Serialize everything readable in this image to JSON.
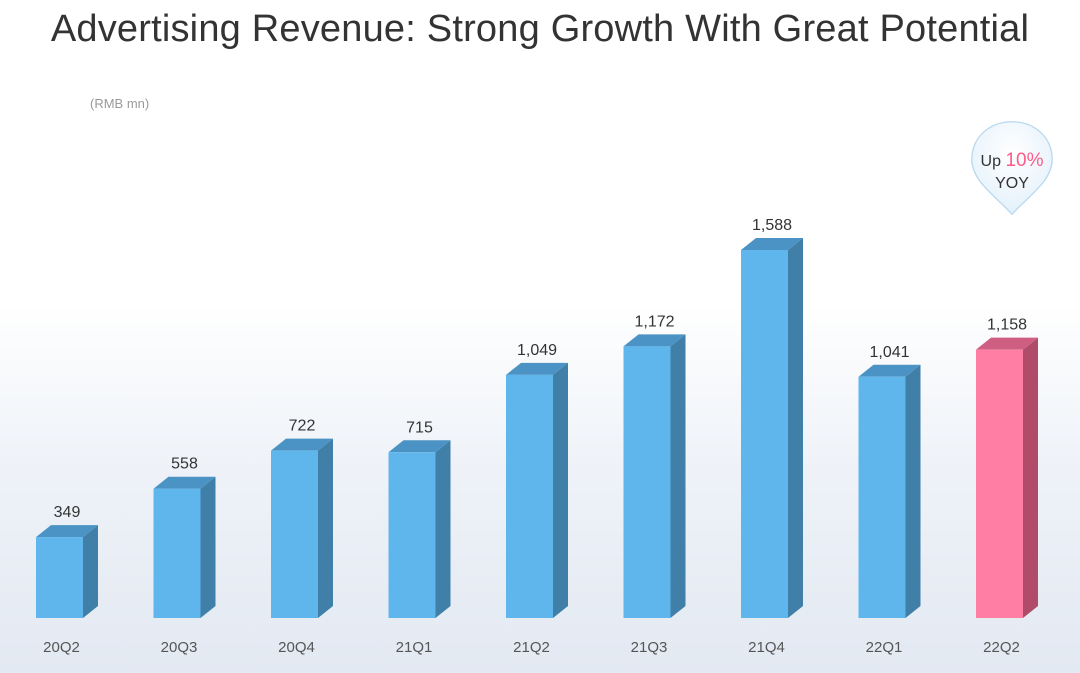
{
  "title": "Advertising Revenue:  Strong Growth With Great Potential",
  "unit": "(RMB mn)",
  "callout": {
    "prefix": "Up",
    "value": "10%",
    "suffix": "YOY"
  },
  "colors": {
    "bar": "#5fb6ec",
    "bar_side": "#3f7fa8",
    "bar_top": "#4a93c4",
    "highlight": "#ff7ea4",
    "highlight_side": "#b04c6a",
    "highlight_top": "#cf5f82"
  },
  "chart_data": {
    "type": "bar",
    "categories": [
      "20Q2",
      "20Q3",
      "20Q4",
      "21Q1",
      "21Q2",
      "21Q3",
      "21Q4",
      "22Q1",
      "22Q2"
    ],
    "values": [
      349,
      558,
      722,
      715,
      1049,
      1172,
      1588,
      1041,
      1158
    ],
    "value_labels": [
      "349",
      "558",
      "722",
      "715",
      "1,049",
      "1,172",
      "1,588",
      "1,041",
      "1,158"
    ],
    "highlight_index": 8,
    "ylabel": "(RMB mn)",
    "ylim": [
      0,
      1588
    ],
    "grid": false,
    "legend": "none"
  }
}
